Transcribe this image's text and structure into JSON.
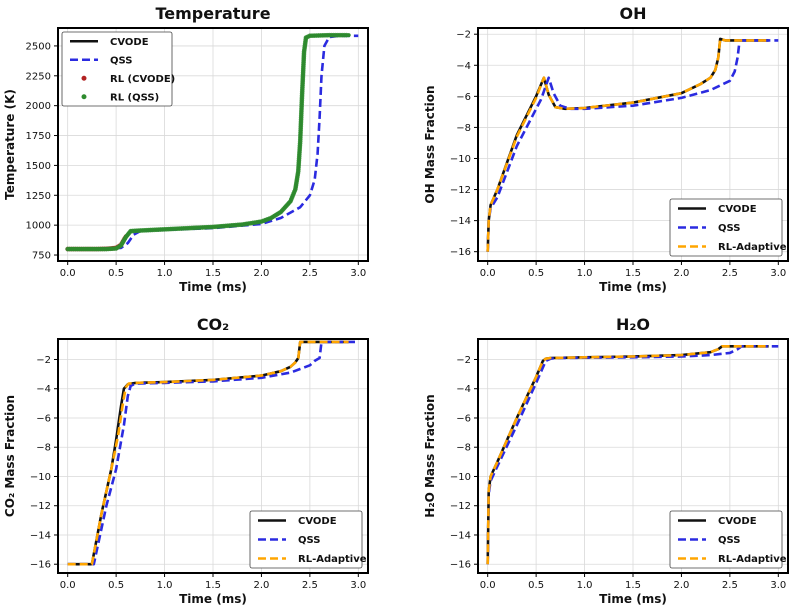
{
  "chart_data": [
    {
      "type": "line",
      "title": "Temperature",
      "xlabel": "Time (ms)",
      "ylabel": "Temperature (K)",
      "xlim": [
        -0.1,
        3.1
      ],
      "ylim": [
        700,
        2650
      ],
      "xticks": [
        0.0,
        0.5,
        1.0,
        1.5,
        2.0,
        2.5,
        3.0
      ],
      "yticks": [
        750,
        1000,
        1250,
        1500,
        1750,
        2000,
        2250,
        2500
      ],
      "xtick_labels": [
        "0.0",
        "0.5",
        "1.0",
        "1.5",
        "2.0",
        "2.5",
        "3.0"
      ],
      "ytick_labels": [
        "750",
        "1000",
        "1250",
        "1500",
        "1750",
        "2000",
        "2250",
        "2500"
      ],
      "legend_position": "top-left",
      "grid": true,
      "series": [
        {
          "name": "CVODE",
          "style": "solid",
          "color": "#111111",
          "x": [
            0.0,
            0.5,
            0.55,
            0.6,
            0.65,
            0.75,
            1.0,
            1.5,
            1.8,
            2.0,
            2.1,
            2.2,
            2.3,
            2.35,
            2.38,
            2.4,
            2.42,
            2.44,
            2.46,
            2.5,
            2.7,
            2.9
          ],
          "y": [
            800,
            805,
            830,
            900,
            950,
            955,
            965,
            985,
            1005,
            1030,
            1060,
            1110,
            1200,
            1300,
            1450,
            1700,
            2100,
            2450,
            2570,
            2585,
            2590,
            2590
          ]
        },
        {
          "name": "QSS",
          "style": "dashed",
          "color": "#2b2be0",
          "x": [
            0.0,
            0.55,
            0.62,
            0.68,
            0.75,
            1.0,
            1.5,
            2.0,
            2.2,
            2.4,
            2.5,
            2.55,
            2.58,
            2.6,
            2.62,
            2.65,
            2.7,
            2.8,
            2.9,
            3.0
          ],
          "y": [
            800,
            810,
            850,
            920,
            950,
            960,
            975,
            1010,
            1060,
            1150,
            1250,
            1380,
            1600,
            1900,
            2250,
            2500,
            2575,
            2585,
            2585,
            2585
          ]
        },
        {
          "name": "RL (CVODE)",
          "style": "markers",
          "color": "#b22222",
          "x": [
            0.0,
            0.1,
            0.2,
            0.3,
            0.4,
            0.45,
            0.5,
            0.55,
            0.6
          ],
          "y": [
            800,
            800,
            800,
            800,
            802,
            805,
            810,
            835,
            905
          ]
        },
        {
          "name": "RL (QSS)",
          "style": "markers",
          "color": "#2e8b2e",
          "x": [
            0.0,
            0.1,
            0.2,
            0.3,
            0.4,
            0.5,
            0.55,
            0.6,
            0.65,
            0.75,
            1.0,
            1.5,
            1.8,
            2.0,
            2.1,
            2.2,
            2.3,
            2.35,
            2.38,
            2.4,
            2.42,
            2.44,
            2.46,
            2.5,
            2.7,
            2.9
          ],
          "y": [
            800,
            800,
            800,
            800,
            800,
            805,
            830,
            900,
            950,
            955,
            965,
            985,
            1005,
            1030,
            1060,
            1110,
            1200,
            1300,
            1450,
            1700,
            2100,
            2450,
            2570,
            2585,
            2590,
            2590
          ]
        }
      ]
    },
    {
      "type": "line",
      "title": "OH",
      "xlabel": "Time (ms)",
      "ylabel": "OH Mass Fraction",
      "xlim": [
        -0.1,
        3.1
      ],
      "ylim": [
        -16.6,
        -1.6
      ],
      "xticks": [
        0.0,
        0.5,
        1.0,
        1.5,
        2.0,
        2.5,
        3.0
      ],
      "yticks": [
        -16,
        -14,
        -12,
        -10,
        -8,
        -6,
        -4,
        -2
      ],
      "xtick_labels": [
        "0.0",
        "0.5",
        "1.0",
        "1.5",
        "2.0",
        "2.5",
        "3.0"
      ],
      "ytick_labels": [
        "−16",
        "−14",
        "−12",
        "−10",
        "−8",
        "−6",
        "−4",
        "−2"
      ],
      "legend_position": "bottom-right",
      "grid": true,
      "series": [
        {
          "name": "CVODE",
          "style": "solid",
          "color": "#111111",
          "x": [
            0.0,
            0.01,
            0.03,
            0.1,
            0.3,
            0.5,
            0.58,
            0.63,
            0.7,
            0.8,
            1.0,
            1.5,
            2.0,
            2.2,
            2.3,
            2.35,
            2.38,
            2.4,
            2.45,
            2.6,
            2.9
          ],
          "y": [
            -16,
            -14,
            -13,
            -12,
            -8.5,
            -6,
            -4.8,
            -5.9,
            -6.7,
            -6.8,
            -6.75,
            -6.4,
            -5.8,
            -5.2,
            -4.8,
            -4.3,
            -3.5,
            -2.3,
            -2.4,
            -2.4,
            -2.4
          ]
        },
        {
          "name": "QSS",
          "style": "dashed",
          "color": "#2b2be0",
          "x": [
            0.0,
            0.01,
            0.03,
            0.1,
            0.3,
            0.55,
            0.63,
            0.68,
            0.75,
            0.85,
            1.0,
            1.5,
            2.0,
            2.3,
            2.5,
            2.55,
            2.58,
            2.6,
            2.65,
            2.8,
            3.0
          ],
          "y": [
            -16,
            -14,
            -13.2,
            -12.5,
            -9.2,
            -6.2,
            -4.8,
            -5.8,
            -6.6,
            -6.8,
            -6.8,
            -6.6,
            -6.1,
            -5.6,
            -5.0,
            -4.4,
            -3.5,
            -2.4,
            -2.4,
            -2.4,
            -2.4
          ]
        },
        {
          "name": "RL-Adaptive",
          "style": "dashed",
          "color": "#ffa500",
          "x": [
            0.0,
            0.01,
            0.03,
            0.1,
            0.3,
            0.5,
            0.58,
            0.63,
            0.7,
            0.8,
            1.0,
            1.5,
            2.0,
            2.2,
            2.3,
            2.35,
            2.38,
            2.4,
            2.45,
            2.6,
            2.9
          ],
          "y": [
            -16,
            -14,
            -13,
            -12,
            -8.6,
            -6.1,
            -4.8,
            -5.9,
            -6.7,
            -6.8,
            -6.75,
            -6.4,
            -5.8,
            -5.2,
            -4.8,
            -4.3,
            -3.5,
            -2.3,
            -2.4,
            -2.4,
            -2.4
          ]
        }
      ]
    },
    {
      "type": "line",
      "title": "CO₂",
      "xlabel": "Time (ms)",
      "ylabel": "CO₂ Mass Fraction",
      "xlim": [
        -0.1,
        3.1
      ],
      "ylim": [
        -16.6,
        -0.6
      ],
      "xticks": [
        0.0,
        0.5,
        1.0,
        1.5,
        2.0,
        2.5,
        3.0
      ],
      "yticks": [
        -16,
        -14,
        -12,
        -10,
        -8,
        -6,
        -4,
        -2
      ],
      "xtick_labels": [
        "0.0",
        "0.5",
        "1.0",
        "1.5",
        "2.0",
        "2.5",
        "3.0"
      ],
      "ytick_labels": [
        "−16",
        "−14",
        "−12",
        "−10",
        "−8",
        "−6",
        "−4",
        "−2"
      ],
      "legend_position": "bottom-right",
      "grid": true,
      "series": [
        {
          "name": "CVODE",
          "style": "solid",
          "color": "#111111",
          "x": [
            0.0,
            0.25,
            0.35,
            0.45,
            0.5,
            0.55,
            0.58,
            0.62,
            0.7,
            1.0,
            1.5,
            2.0,
            2.2,
            2.3,
            2.35,
            2.38,
            2.4,
            2.45,
            2.7,
            2.9
          ],
          "y": [
            -16,
            -16,
            -12.5,
            -9.5,
            -7.5,
            -5.2,
            -4.0,
            -3.7,
            -3.6,
            -3.55,
            -3.4,
            -3.1,
            -2.8,
            -2.5,
            -2.2,
            -1.9,
            -0.8,
            -0.8,
            -0.8,
            -0.8
          ]
        },
        {
          "name": "QSS",
          "style": "dashed",
          "color": "#2b2be0",
          "x": [
            0.0,
            0.27,
            0.4,
            0.5,
            0.58,
            0.62,
            0.65,
            0.7,
            1.0,
            1.5,
            2.0,
            2.3,
            2.5,
            2.55,
            2.6,
            2.62,
            2.7,
            3.0
          ],
          "y": [
            -16,
            -16,
            -12,
            -9.5,
            -6.5,
            -4.5,
            -3.8,
            -3.65,
            -3.6,
            -3.5,
            -3.25,
            -2.9,
            -2.4,
            -2.1,
            -1.9,
            -0.8,
            -0.8,
            -0.8
          ]
        },
        {
          "name": "RL-Adaptive",
          "style": "dashed",
          "color": "#ffa500",
          "x": [
            0.0,
            0.25,
            0.35,
            0.45,
            0.52,
            0.57,
            0.6,
            0.63,
            0.7,
            1.0,
            1.5,
            2.0,
            2.2,
            2.3,
            2.35,
            2.38,
            2.4,
            2.45,
            2.7,
            2.9
          ],
          "y": [
            -16,
            -16,
            -12.5,
            -9.5,
            -7.2,
            -5.0,
            -3.9,
            -3.65,
            -3.6,
            -3.55,
            -3.4,
            -3.1,
            -2.8,
            -2.5,
            -2.2,
            -1.9,
            -0.8,
            -0.8,
            -0.8,
            -0.8
          ]
        }
      ]
    },
    {
      "type": "line",
      "title": "H₂O",
      "xlabel": "Time (ms)",
      "ylabel": "H₂O Mass Fraction",
      "xlim": [
        -0.1,
        3.1
      ],
      "ylim": [
        -16.6,
        -0.6
      ],
      "xticks": [
        0.0,
        0.5,
        1.0,
        1.5,
        2.0,
        2.5,
        3.0
      ],
      "yticks": [
        -16,
        -14,
        -12,
        -10,
        -8,
        -6,
        -4,
        -2
      ],
      "xtick_labels": [
        "0.0",
        "0.5",
        "1.0",
        "1.5",
        "2.0",
        "2.5",
        "3.0"
      ],
      "ytick_labels": [
        "−16",
        "−14",
        "−12",
        "−10",
        "−8",
        "−6",
        "−4",
        "−2"
      ],
      "legend_position": "bottom-right",
      "grid": true,
      "series": [
        {
          "name": "CVODE",
          "style": "solid",
          "color": "#111111",
          "x": [
            0.0,
            0.01,
            0.03,
            0.1,
            0.3,
            0.5,
            0.57,
            0.6,
            0.65,
            1.0,
            1.5,
            2.0,
            2.3,
            2.38,
            2.42,
            2.5,
            2.9
          ],
          "y": [
            -16,
            -11,
            -10,
            -9,
            -6,
            -3.2,
            -2.1,
            -1.95,
            -1.9,
            -1.85,
            -1.8,
            -1.7,
            -1.5,
            -1.3,
            -1.1,
            -1.1,
            -1.1
          ]
        },
        {
          "name": "QSS",
          "style": "dashed",
          "color": "#2b2be0",
          "x": [
            0.0,
            0.01,
            0.03,
            0.1,
            0.3,
            0.5,
            0.6,
            0.65,
            0.7,
            1.0,
            1.5,
            2.0,
            2.3,
            2.5,
            2.58,
            2.62,
            2.7,
            3.0
          ],
          "y": [
            -16,
            -11.2,
            -10.3,
            -9.3,
            -6.5,
            -3.6,
            -2.1,
            -1.95,
            -1.9,
            -1.88,
            -1.85,
            -1.8,
            -1.7,
            -1.55,
            -1.3,
            -1.1,
            -1.1,
            -1.1
          ]
        },
        {
          "name": "RL-Adaptive",
          "style": "dashed",
          "color": "#ffa500",
          "x": [
            0.0,
            0.01,
            0.03,
            0.1,
            0.3,
            0.5,
            0.57,
            0.6,
            0.65,
            1.0,
            1.5,
            2.0,
            2.3,
            2.38,
            2.42,
            2.5,
            2.9
          ],
          "y": [
            -16,
            -11,
            -10,
            -9,
            -6,
            -3.2,
            -2.1,
            -1.95,
            -1.9,
            -1.85,
            -1.8,
            -1.7,
            -1.5,
            -1.3,
            -1.1,
            -1.1,
            -1.1
          ]
        }
      ]
    }
  ]
}
